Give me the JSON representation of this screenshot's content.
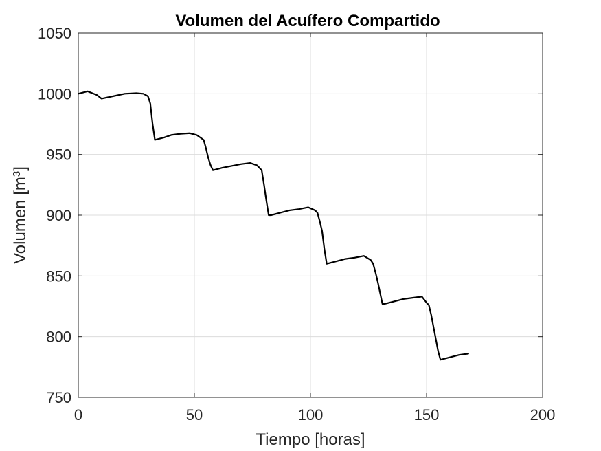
{
  "chart_data": {
    "type": "line",
    "title": "Volumen del Acuífero Compartido",
    "xlabel": "Tiempo [horas]",
    "ylabel_main": "Volumen [m",
    "ylabel_sup": "3",
    "ylabel_close": "]",
    "xlim": [
      0,
      200
    ],
    "ylim": [
      750,
      1050
    ],
    "xticks": [
      "0",
      "50",
      "100",
      "150",
      "200"
    ],
    "yticks": [
      "750",
      "800",
      "850",
      "900",
      "950",
      "1000",
      "1050"
    ],
    "grid": true,
    "line_color": "#000000",
    "series": [
      {
        "x": [
          0,
          4,
          8,
          10,
          15,
          20,
          25,
          28,
          30,
          31,
          32,
          33,
          34,
          37,
          40,
          44,
          48,
          51,
          54,
          55,
          56,
          57,
          58,
          62,
          66,
          70,
          74,
          77,
          79,
          80,
          81,
          82,
          83,
          87,
          91,
          95,
          99,
          102,
          103,
          104,
          105,
          106,
          107,
          111,
          115,
          119,
          123,
          126,
          127,
          128,
          129,
          130,
          131,
          132,
          136,
          140,
          144,
          148,
          150,
          151,
          152,
          153,
          154,
          155,
          156,
          160,
          164,
          168
        ],
        "y": [
          1000,
          1002,
          999,
          996,
          998,
          1000,
          1000.5,
          1000,
          998,
          992,
          975,
          962,
          962.5,
          964,
          966,
          967,
          967.5,
          966,
          962,
          955,
          947,
          941,
          937,
          939,
          940.5,
          942,
          943,
          941,
          937,
          925,
          912,
          900,
          900,
          902,
          904,
          905,
          906.5,
          904,
          902,
          895,
          887,
          872,
          860,
          862,
          864,
          865,
          866.5,
          863,
          860,
          853,
          845,
          836,
          827,
          827,
          829,
          831,
          832,
          833,
          828,
          826,
          818,
          808,
          798,
          788,
          781,
          783,
          785,
          786
        ]
      }
    ]
  }
}
